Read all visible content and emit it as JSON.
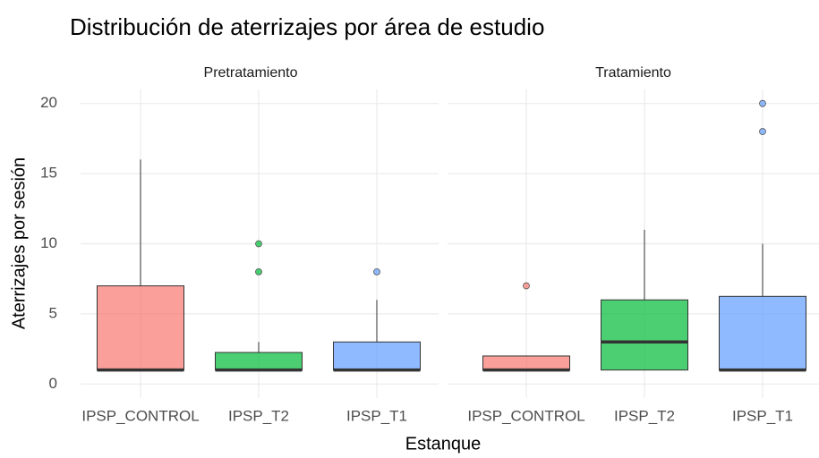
{
  "chart_data": {
    "type": "box",
    "title": "Distribución de aterrizajes por área de estudio",
    "xlabel": "Estanque",
    "ylabel": "Aterrizajes por sesión",
    "ylim": [
      -1,
      21
    ],
    "yticks": [
      0,
      5,
      10,
      15,
      20
    ],
    "grid": true,
    "colors": [
      "#f8766d",
      "#00ba38",
      "#619cff"
    ],
    "panels": [
      {
        "title": "Pretratamiento",
        "categories": [
          "IPSP_CONTROL",
          "IPSP_T2",
          "IPSP_T1"
        ],
        "boxes": [
          {
            "min": 1,
            "q1": 1,
            "median": 1,
            "q3": 7,
            "max": 16,
            "outliers": []
          },
          {
            "min": 1,
            "q1": 1,
            "median": 1,
            "q3": 2.25,
            "max": 3,
            "outliers": [
              8,
              10
            ]
          },
          {
            "min": 1,
            "q1": 1,
            "median": 1,
            "q3": 3,
            "max": 6,
            "outliers": [
              8
            ]
          }
        ]
      },
      {
        "title": "Tratamiento",
        "categories": [
          "IPSP_CONTROL",
          "IPSP_T2",
          "IPSP_T1"
        ],
        "boxes": [
          {
            "min": 1,
            "q1": 1,
            "median": 1,
            "q3": 2,
            "max": 2,
            "outliers": [
              7
            ]
          },
          {
            "min": 1,
            "q1": 1,
            "median": 3,
            "q3": 6,
            "max": 11,
            "outliers": []
          },
          {
            "min": 1,
            "q1": 1,
            "median": 1,
            "q3": 6.25,
            "max": 10,
            "outliers": [
              18,
              20
            ]
          }
        ]
      }
    ]
  }
}
